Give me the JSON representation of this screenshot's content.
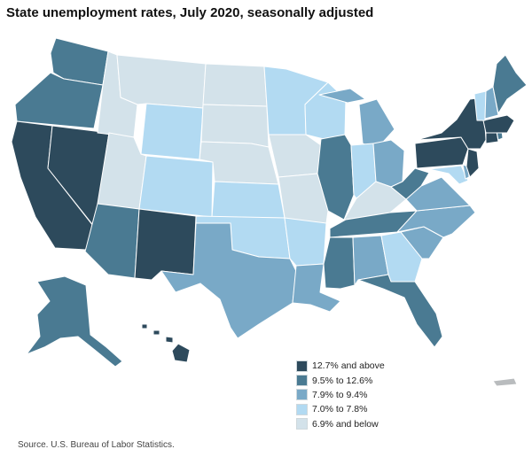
{
  "title": "State unemployment rates, July 2020, seasonally adjusted",
  "legend": [
    {
      "label": "12.7% and above",
      "color": "#2d4a5c"
    },
    {
      "label": "9.5% to 12.6%",
      "color": "#4a7a92"
    },
    {
      "label": "7.9% to 9.4%",
      "color": "#79a9c7"
    },
    {
      "label": "7.0% to 7.8%",
      "color": "#b2daf2"
    },
    {
      "label": "6.9% and below",
      "color": "#d3e2ea"
    }
  ],
  "territory_color": "#b9bcbe",
  "source": "Source. U.S. Bureau of Labor Statistics."
}
